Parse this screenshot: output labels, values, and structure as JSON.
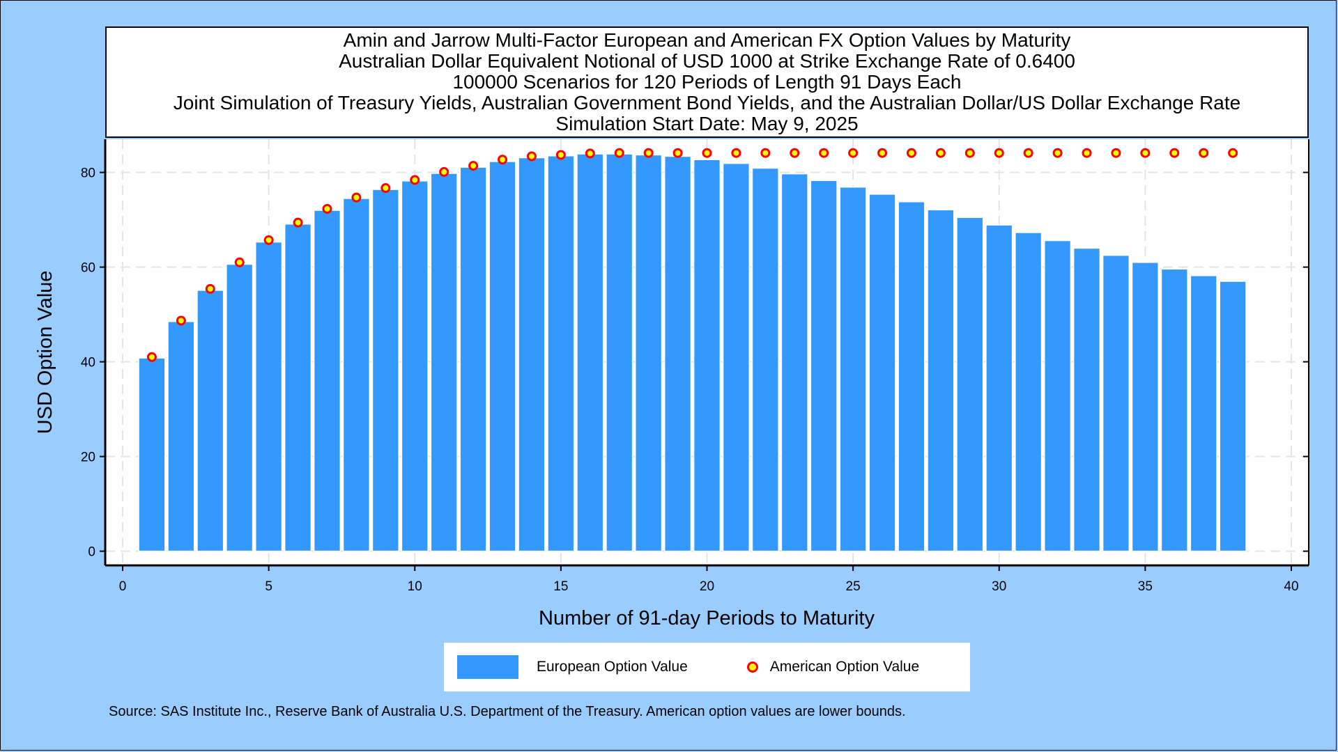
{
  "chart_data": {
    "type": "bar",
    "title": [
      "Amin and Jarrow Multi-Factor European and American FX Option Values by Maturity",
      "Australian Dollar Equivalent Notional of USD 1000 at Strike Exchange Rate of  0.6400",
      "100000 Scenarios for 120 Periods of Length 91 Days Each",
      "Joint Simulation of Treasury Yields, Australian Government Bond Yields, and the Australian Dollar/US Dollar Exchange Rate",
      "Simulation Start Date: May 9, 2025"
    ],
    "xlabel": "Number of 91-day Periods to Maturity",
    "ylabel": "USD Option Value",
    "xlim": [
      0,
      40
    ],
    "ylim": [
      -3,
      87
    ],
    "xticks": [
      0,
      5,
      10,
      15,
      20,
      25,
      30,
      35,
      40
    ],
    "yticks": [
      0,
      20,
      40,
      60,
      80
    ],
    "grid": true,
    "legend_position": "bottom",
    "x": [
      1,
      2,
      3,
      4,
      5,
      6,
      7,
      8,
      9,
      10,
      11,
      12,
      13,
      14,
      15,
      16,
      17,
      18,
      19,
      20,
      21,
      22,
      23,
      24,
      25,
      26,
      27,
      28,
      29,
      30,
      31,
      32,
      33,
      34,
      35,
      36,
      37,
      38
    ],
    "series": [
      {
        "name": "European Option Value",
        "type": "bar",
        "color": "#3399ff",
        "values": [
          40.8,
          48.5,
          55.1,
          60.6,
          65.3,
          69.1,
          72.0,
          74.5,
          76.4,
          78.2,
          79.8,
          81.1,
          82.3,
          83.1,
          83.5,
          83.9,
          83.9,
          83.7,
          83.4,
          82.7,
          81.9,
          80.9,
          79.7,
          78.3,
          76.9,
          75.4,
          73.8,
          72.1,
          70.5,
          68.9,
          67.3,
          65.6,
          64.0,
          62.5,
          61.0,
          59.6,
          58.2,
          57.0
        ]
      },
      {
        "name": "American Option Value",
        "type": "scatter",
        "color": "#ffff00",
        "edge_color": "#ff0000",
        "values": [
          41.0,
          48.7,
          55.4,
          61.0,
          65.7,
          69.4,
          72.3,
          74.7,
          76.7,
          78.4,
          80.1,
          81.4,
          82.7,
          83.4,
          83.7,
          84.0,
          84.1,
          84.1,
          84.1,
          84.1,
          84.1,
          84.1,
          84.1,
          84.1,
          84.1,
          84.1,
          84.1,
          84.1,
          84.1,
          84.1,
          84.1,
          84.1,
          84.1,
          84.1,
          84.1,
          84.1,
          84.1,
          84.1
        ]
      }
    ]
  },
  "source_note": "Source: SAS Institute Inc., Reserve Bank of Australia U.S. Department of the Treasury. American option values are lower bounds."
}
